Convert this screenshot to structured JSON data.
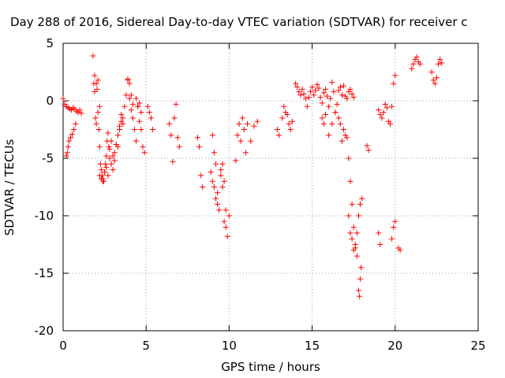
{
  "chart_data": {
    "type": "scatter",
    "title": "Day 288 of 2016, Sidereal Day-to-day VTEC variation (SDTVAR) for receiver c",
    "xlabel": "GPS time / hours",
    "ylabel": "SDTVAR / TECUs",
    "xlim": [
      0,
      25
    ],
    "ylim": [
      -20,
      5
    ],
    "xticks": [
      0,
      5,
      10,
      15,
      20,
      25
    ],
    "yticks": [
      -20,
      -15,
      -10,
      -5,
      0,
      5
    ],
    "xtick_labels": [
      "0",
      "5",
      "10",
      "15",
      "20",
      "25"
    ],
    "ytick_labels": [
      "-20",
      "-15",
      "-10",
      "-5",
      "0",
      "5"
    ],
    "grid": true,
    "marker": "+",
    "color": "#ff0000",
    "series": [
      {
        "name": "SDTVAR",
        "x": [
          0.0,
          0.1,
          0.2,
          0.3,
          0.4,
          0.5,
          0.6,
          0.7,
          0.8,
          0.9,
          1.0,
          1.1,
          0.2,
          0.25,
          0.3,
          0.35,
          0.45,
          0.55,
          0.65,
          0.75,
          1.8,
          1.85,
          1.9,
          1.95,
          2.0,
          2.05,
          2.1,
          2.15,
          2.2,
          2.25,
          2.3,
          2.35,
          2.4,
          2.45,
          2.5,
          2.55,
          2.6,
          2.65,
          2.7,
          2.75,
          2.8,
          2.9,
          3.0,
          3.1,
          3.2,
          3.3,
          3.4,
          3.5,
          3.6,
          3.7,
          3.8,
          3.9,
          4.0,
          4.1,
          4.2,
          4.3,
          4.4,
          4.5,
          4.6,
          4.7,
          4.8,
          4.9,
          2.2,
          2.3,
          2.4,
          2.5,
          2.6,
          2.7,
          2.8,
          2.9,
          3.0,
          3.1,
          3.2,
          3.3,
          3.4,
          3.5,
          3.6,
          1.9,
          2.0,
          2.1,
          2.2,
          3.9,
          4.0,
          4.1,
          4.2,
          4.4,
          4.5,
          4.6,
          4.7,
          5.1,
          5.2,
          5.3,
          5.4,
          6.4,
          6.5,
          6.6,
          6.7,
          6.8,
          6.9,
          7.0,
          8.1,
          8.2,
          8.3,
          8.4,
          8.9,
          9.0,
          9.1,
          9.2,
          9.3,
          9.4,
          9.5,
          9.6,
          9.7,
          9.8,
          9.9,
          10.0,
          9.0,
          9.1,
          9.2,
          9.3,
          9.5,
          9.6,
          9.7,
          9.8,
          10.4,
          10.5,
          10.6,
          10.7,
          10.8,
          10.9,
          11.0,
          11.1,
          11.3,
          11.5,
          11.7,
          12.9,
          13.0,
          13.2,
          13.3,
          13.4,
          13.5,
          13.6,
          13.7,
          13.8,
          14.0,
          14.1,
          14.2,
          14.3,
          14.4,
          14.5,
          14.6,
          14.7,
          14.8,
          14.9,
          15.0,
          15.1,
          15.2,
          15.3,
          15.4,
          15.5,
          15.6,
          15.7,
          15.8,
          15.9,
          16.0,
          16.1,
          16.2,
          16.3,
          16.4,
          16.5,
          16.6,
          16.7,
          16.8,
          16.9,
          17.0,
          17.1,
          17.2,
          17.3,
          17.4,
          17.5,
          15.6,
          15.7,
          15.8,
          16.0,
          16.2,
          16.4,
          16.6,
          16.7,
          16.8,
          16.9,
          17.0,
          17.1,
          17.2,
          17.3,
          17.4,
          17.5,
          17.6,
          17.7,
          17.2,
          17.3,
          17.4,
          17.5,
          17.6,
          17.7,
          17.8,
          17.9,
          18.0,
          17.8,
          17.85,
          17.9,
          17.95,
          18.3,
          18.4,
          19.0,
          19.1,
          19.2,
          19.3,
          19.4,
          19.5,
          19.6,
          19.7,
          19.8,
          19.9,
          20.0,
          19.0,
          19.1,
          19.8,
          19.9,
          20.0,
          20.2,
          20.3,
          21.0,
          21.1,
          21.2,
          21.3,
          21.4,
          21.5,
          22.2,
          22.3,
          22.4,
          22.5,
          22.6,
          22.7,
          22.8
        ],
        "y": [
          0.2,
          -0.3,
          -0.5,
          -0.6,
          -0.7,
          -0.8,
          -0.6,
          -0.7,
          -0.9,
          -1.0,
          -0.8,
          -1.1,
          -4.8,
          -4.5,
          -4.0,
          -3.5,
          -3.2,
          -2.9,
          -2.5,
          -2.0,
          3.9,
          1.5,
          0.8,
          -1.5,
          -2.0,
          1.0,
          -1.0,
          -2.5,
          -4.0,
          -5.5,
          -6.0,
          -6.5,
          -6.8,
          -7.0,
          -6.2,
          -5.5,
          -4.8,
          -3.5,
          -2.8,
          -4.0,
          -5.0,
          -5.5,
          -6.0,
          -4.5,
          -3.8,
          -3.0,
          -2.5,
          -1.8,
          -1.5,
          -0.5,
          0.5,
          1.8,
          0.2,
          -0.8,
          -1.5,
          -2.5,
          -3.5,
          -0.5,
          -0.2,
          -1.0,
          -4.0,
          -4.5,
          -6.5,
          -6.8,
          -7.0,
          -6.2,
          -5.8,
          -6.5,
          -4.2,
          -3.5,
          -4.8,
          -5.2,
          -3.8,
          -4.0,
          -2.2,
          -1.2,
          -2.0,
          2.2,
          1.5,
          1.8,
          -0.5,
          1.9,
          1.5,
          0.5,
          -0.3,
          0.2,
          -0.5,
          -1.8,
          -2.5,
          -0.5,
          -1.0,
          -1.5,
          -2.5,
          -2.0,
          -3.0,
          -5.3,
          -1.5,
          -0.3,
          -3.2,
          -4.0,
          -3.2,
          -4.0,
          -6.5,
          -7.5,
          -6.2,
          -3.0,
          -4.5,
          -5.5,
          -8.0,
          -9.5,
          -6.5,
          -5.5,
          -7.0,
          -9.5,
          -11.8,
          -10.0,
          -7.0,
          -7.5,
          -8.5,
          -9.0,
          -6.0,
          -7.5,
          -10.5,
          -11.0,
          -5.2,
          -3.0,
          -2.0,
          -3.5,
          -1.5,
          -2.5,
          -4.5,
          -2.0,
          -3.5,
          -2.2,
          -1.8,
          -2.5,
          -3.0,
          -1.5,
          -0.5,
          -1.0,
          -1.2,
          -2.0,
          -2.5,
          -1.8,
          1.5,
          1.2,
          0.8,
          0.5,
          1.0,
          0.6,
          0.2,
          -0.5,
          0.3,
          0.8,
          1.2,
          0.5,
          0.9,
          1.4,
          1.1,
          0.3,
          -0.2,
          0.7,
          1.0,
          0.4,
          -0.5,
          0.2,
          1.6,
          0.8,
          -1.0,
          -0.3,
          0.9,
          1.2,
          0.5,
          1.3,
          0.4,
          0.2,
          0.8,
          1.0,
          0.6,
          0.3,
          -1.5,
          -2.0,
          -1.2,
          -3.0,
          -2.0,
          -1.0,
          -1.5,
          -2.0,
          -3.5,
          -2.5,
          -3.0,
          -3.2,
          -5.0,
          -7.0,
          -9.0,
          -11.0,
          -12.8,
          -13.5,
          -10.0,
          -11.5,
          -12.0,
          -13.0,
          -12.5,
          -11.5,
          -10.0,
          -9.0,
          -8.5,
          -16.5,
          -17.0,
          -15.5,
          -14.5,
          -3.9,
          -4.3,
          -0.8,
          -1.2,
          -1.5,
          -1.0,
          -0.3,
          -0.6,
          -1.8,
          -2.0,
          -0.5,
          1.5,
          2.2,
          -11.5,
          -12.5,
          -12.0,
          -11.0,
          -10.5,
          -12.8,
          -13.0,
          2.8,
          3.2,
          3.6,
          3.8,
          3.4,
          3.2,
          2.5,
          1.8,
          1.5,
          2.0,
          3.2,
          3.6,
          3.3
        ]
      }
    ]
  }
}
